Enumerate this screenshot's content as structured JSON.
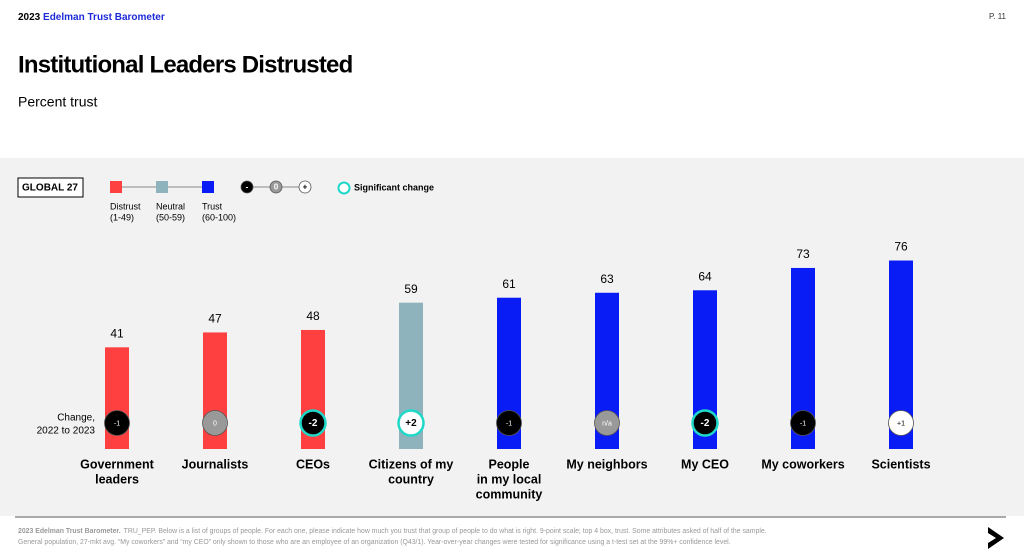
{
  "header": {
    "year": "2023",
    "brand": "Edelman Trust Barometer",
    "page": "P. 11"
  },
  "chart_data": {
    "type": "bar",
    "title": "Institutional Leaders Distrusted",
    "subtitle": "Percent trust",
    "region": "GLOBAL 27",
    "legend": [
      {
        "name": "Distrust",
        "range": "(1-49)",
        "color": "#ff4040"
      },
      {
        "name": "Neutral",
        "range": "(50-59)",
        "color": "#8fb3bc"
      },
      {
        "name": "Trust",
        "range": "(60-100)",
        "color": "#0a1cf5"
      }
    ],
    "change_legend": [
      "-",
      "0",
      "+"
    ],
    "significant_label": "Significant change",
    "change_title": [
      "Change,",
      "2022 to 2023"
    ],
    "categories": [
      [
        "Government",
        "leaders"
      ],
      [
        "Journalists"
      ],
      [
        "CEOs"
      ],
      [
        "Citizens of my",
        "country"
      ],
      [
        "People",
        "in my local",
        "community"
      ],
      [
        "My neighbors"
      ],
      [
        "My CEO"
      ],
      [
        "My coworkers"
      ],
      [
        "Scientists"
      ]
    ],
    "values": [
      41,
      47,
      48,
      59,
      61,
      63,
      64,
      73,
      76
    ],
    "colors": [
      "#ff4040",
      "#ff4040",
      "#ff4040",
      "#8fb3bc",
      "#0a1cf5",
      "#0a1cf5",
      "#0a1cf5",
      "#0a1cf5",
      "#0a1cf5"
    ],
    "changes": [
      "-1",
      "0",
      "-2",
      "+2",
      "-1",
      "n/a",
      "-2",
      "-1",
      "+1"
    ],
    "significant": [
      false,
      false,
      true,
      true,
      false,
      false,
      true,
      false,
      false
    ],
    "ylim": [
      0,
      100
    ]
  },
  "footnote": {
    "source": "2023 Edelman Trust Barometer.",
    "lines": [
      "TRU_PEP. Below is a list of groups of people. For each one, please indicate how much you trust that group of people to do what is right. 9-point scale; top 4 box, trust. Some attributes asked of half of the sample.",
      "General population, 27-mkt avg. “My coworkers” and “my CEO” only shown to those who are an employee of an organization (Q43/1). Year-over-year changes were tested for significance using a t-test set at the 99%+ confidence level."
    ]
  }
}
